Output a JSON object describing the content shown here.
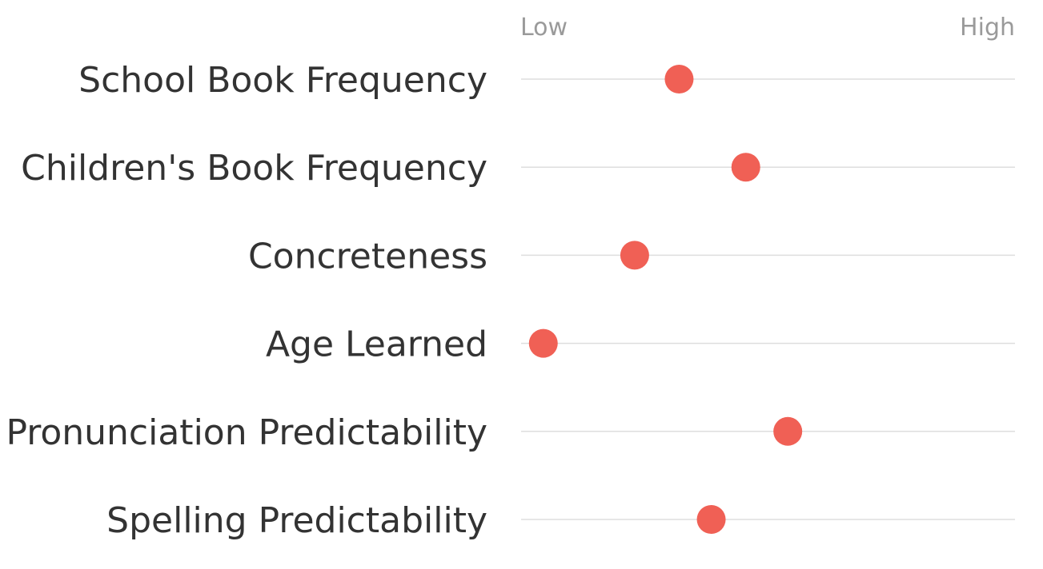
{
  "chart_data": {
    "type": "scatter",
    "scale_labels": {
      "low": "Low",
      "high": "High"
    },
    "xlim": [
      0,
      1
    ],
    "grid": false,
    "legend": "none",
    "color": "#f06055",
    "rows": [
      {
        "label": "School Book Frequency",
        "value": 0.32
      },
      {
        "label": "Children's Book Frequency",
        "value": 0.455
      },
      {
        "label": "Concreteness",
        "value": 0.23
      },
      {
        "label": "Age Learned",
        "value": 0.045
      },
      {
        "label": "Pronunciation Predictability",
        "value": 0.54
      },
      {
        "label": "Spelling Predictability",
        "value": 0.385
      }
    ]
  }
}
